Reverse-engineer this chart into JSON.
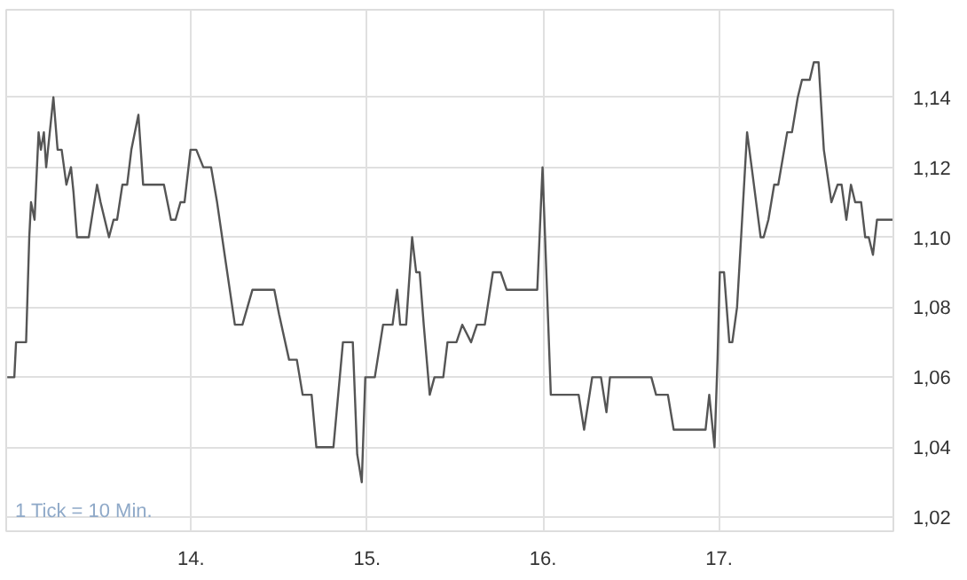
{
  "chart_data": {
    "type": "line",
    "line_style": "solid",
    "marker": "none",
    "grid": true,
    "x": [
      12.956,
      12.996,
      13.006,
      13.063,
      13.081,
      13.091,
      13.111,
      13.134,
      13.147,
      13.164,
      13.177,
      13.218,
      13.242,
      13.265,
      13.292,
      13.318,
      13.332,
      13.352,
      13.419,
      13.466,
      13.486,
      13.534,
      13.56,
      13.58,
      13.61,
      13.637,
      13.661,
      13.701,
      13.728,
      13.846,
      13.886,
      13.912,
      13.94,
      13.963,
      13.997,
      14.03,
      14.07,
      14.114,
      14.148,
      14.191,
      14.249,
      14.292,
      14.349,
      14.473,
      14.5,
      14.557,
      14.601,
      14.634,
      14.685,
      14.712,
      14.809,
      14.863,
      14.919,
      14.944,
      14.97,
      14.99,
      15.044,
      15.091,
      15.145,
      15.171,
      15.188,
      15.222,
      15.256,
      15.279,
      15.299,
      15.322,
      15.356,
      15.383,
      15.433,
      15.457,
      15.508,
      15.541,
      15.591,
      15.624,
      15.669,
      15.715,
      15.759,
      15.793,
      15.967,
      15.997,
      16.004,
      16.044,
      16.202,
      16.233,
      16.279,
      16.329,
      16.36,
      16.38,
      16.615,
      16.642,
      16.709,
      16.742,
      16.923,
      16.944,
      16.958,
      16.974,
      16.991,
      17.004,
      17.028,
      17.058,
      17.075,
      17.102,
      17.125,
      17.159,
      17.185,
      17.236,
      17.253,
      17.28,
      17.313,
      17.336,
      17.387,
      17.414,
      17.447,
      17.471,
      17.515,
      17.538,
      17.565,
      17.595,
      17.638,
      17.673,
      17.696,
      17.723,
      17.749,
      17.773,
      17.807,
      17.83,
      17.85,
      17.874,
      17.897,
      17.985
    ],
    "series": [
      {
        "color": "#555555",
        "values": [
          1.06,
          1.06,
          1.07,
          1.07,
          1.1,
          1.11,
          1.105,
          1.13,
          1.125,
          1.13,
          1.12,
          1.14,
          1.125,
          1.125,
          1.115,
          1.12,
          1.113,
          1.1,
          1.1,
          1.115,
          1.11,
          1.1,
          1.105,
          1.105,
          1.115,
          1.115,
          1.125,
          1.135,
          1.115,
          1.115,
          1.105,
          1.105,
          1.11,
          1.11,
          1.125,
          1.125,
          1.12,
          1.12,
          1.11,
          1.095,
          1.075,
          1.075,
          1.085,
          1.085,
          1.078,
          1.065,
          1.065,
          1.055,
          1.055,
          1.04,
          1.04,
          1.07,
          1.07,
          1.038,
          1.03,
          1.06,
          1.06,
          1.075,
          1.075,
          1.085,
          1.075,
          1.075,
          1.1,
          1.09,
          1.09,
          1.075,
          1.055,
          1.06,
          1.06,
          1.07,
          1.07,
          1.075,
          1.07,
          1.075,
          1.075,
          1.09,
          1.09,
          1.085,
          1.085,
          1.12,
          1.11,
          1.055,
          1.055,
          1.045,
          1.06,
          1.06,
          1.05,
          1.06,
          1.06,
          1.055,
          1.055,
          1.045,
          1.045,
          1.055,
          1.048,
          1.04,
          1.065,
          1.09,
          1.09,
          1.07,
          1.07,
          1.08,
          1.1,
          1.13,
          1.12,
          1.1,
          1.1,
          1.105,
          1.115,
          1.115,
          1.13,
          1.13,
          1.14,
          1.145,
          1.145,
          1.15,
          1.15,
          1.125,
          1.11,
          1.115,
          1.115,
          1.105,
          1.115,
          1.11,
          1.11,
          1.1,
          1.1,
          1.095,
          1.105,
          1.105
        ]
      }
    ],
    "xlim": [
      12.95,
      17.99
    ],
    "xticks": [
      {
        "value": 14,
        "label": "14."
      },
      {
        "value": 15,
        "label": "15."
      },
      {
        "value": 16,
        "label": "16."
      },
      {
        "value": 17,
        "label": "17."
      }
    ],
    "ylim": [
      1.016,
      1.165
    ],
    "yticks": [
      {
        "value": 1.02,
        "label": "1,02"
      },
      {
        "value": 1.04,
        "label": "1,04"
      },
      {
        "value": 1.06,
        "label": "1,06"
      },
      {
        "value": 1.08,
        "label": "1,08"
      },
      {
        "value": 1.1,
        "label": "1,10"
      },
      {
        "value": 1.12,
        "label": "1,12"
      },
      {
        "value": 1.14,
        "label": "1,14"
      }
    ],
    "annotations": [
      "1 Tick = 10 Min."
    ]
  }
}
